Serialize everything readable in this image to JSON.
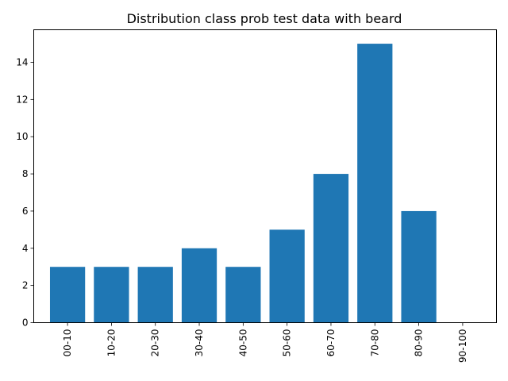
{
  "colors": {
    "bar": "#1f77b4",
    "axis": "#000000",
    "background": "#ffffff"
  },
  "chart_data": {
    "type": "bar",
    "title": "Distribution class prob test data with beard",
    "xlabel": "",
    "ylabel": "",
    "categories": [
      "00-10",
      "10-20",
      "20-30",
      "30-40",
      "40-50",
      "50-60",
      "60-70",
      "70-80",
      "80-90",
      "90-100"
    ],
    "values": [
      3,
      3,
      3,
      4,
      3,
      5,
      8,
      15,
      6,
      0
    ],
    "yticks": [
      "0",
      "2",
      "4",
      "6",
      "8",
      "10",
      "12",
      "14"
    ],
    "ylim": [
      0,
      15.75
    ],
    "grid": false,
    "x_tick_rotation": 90
  }
}
